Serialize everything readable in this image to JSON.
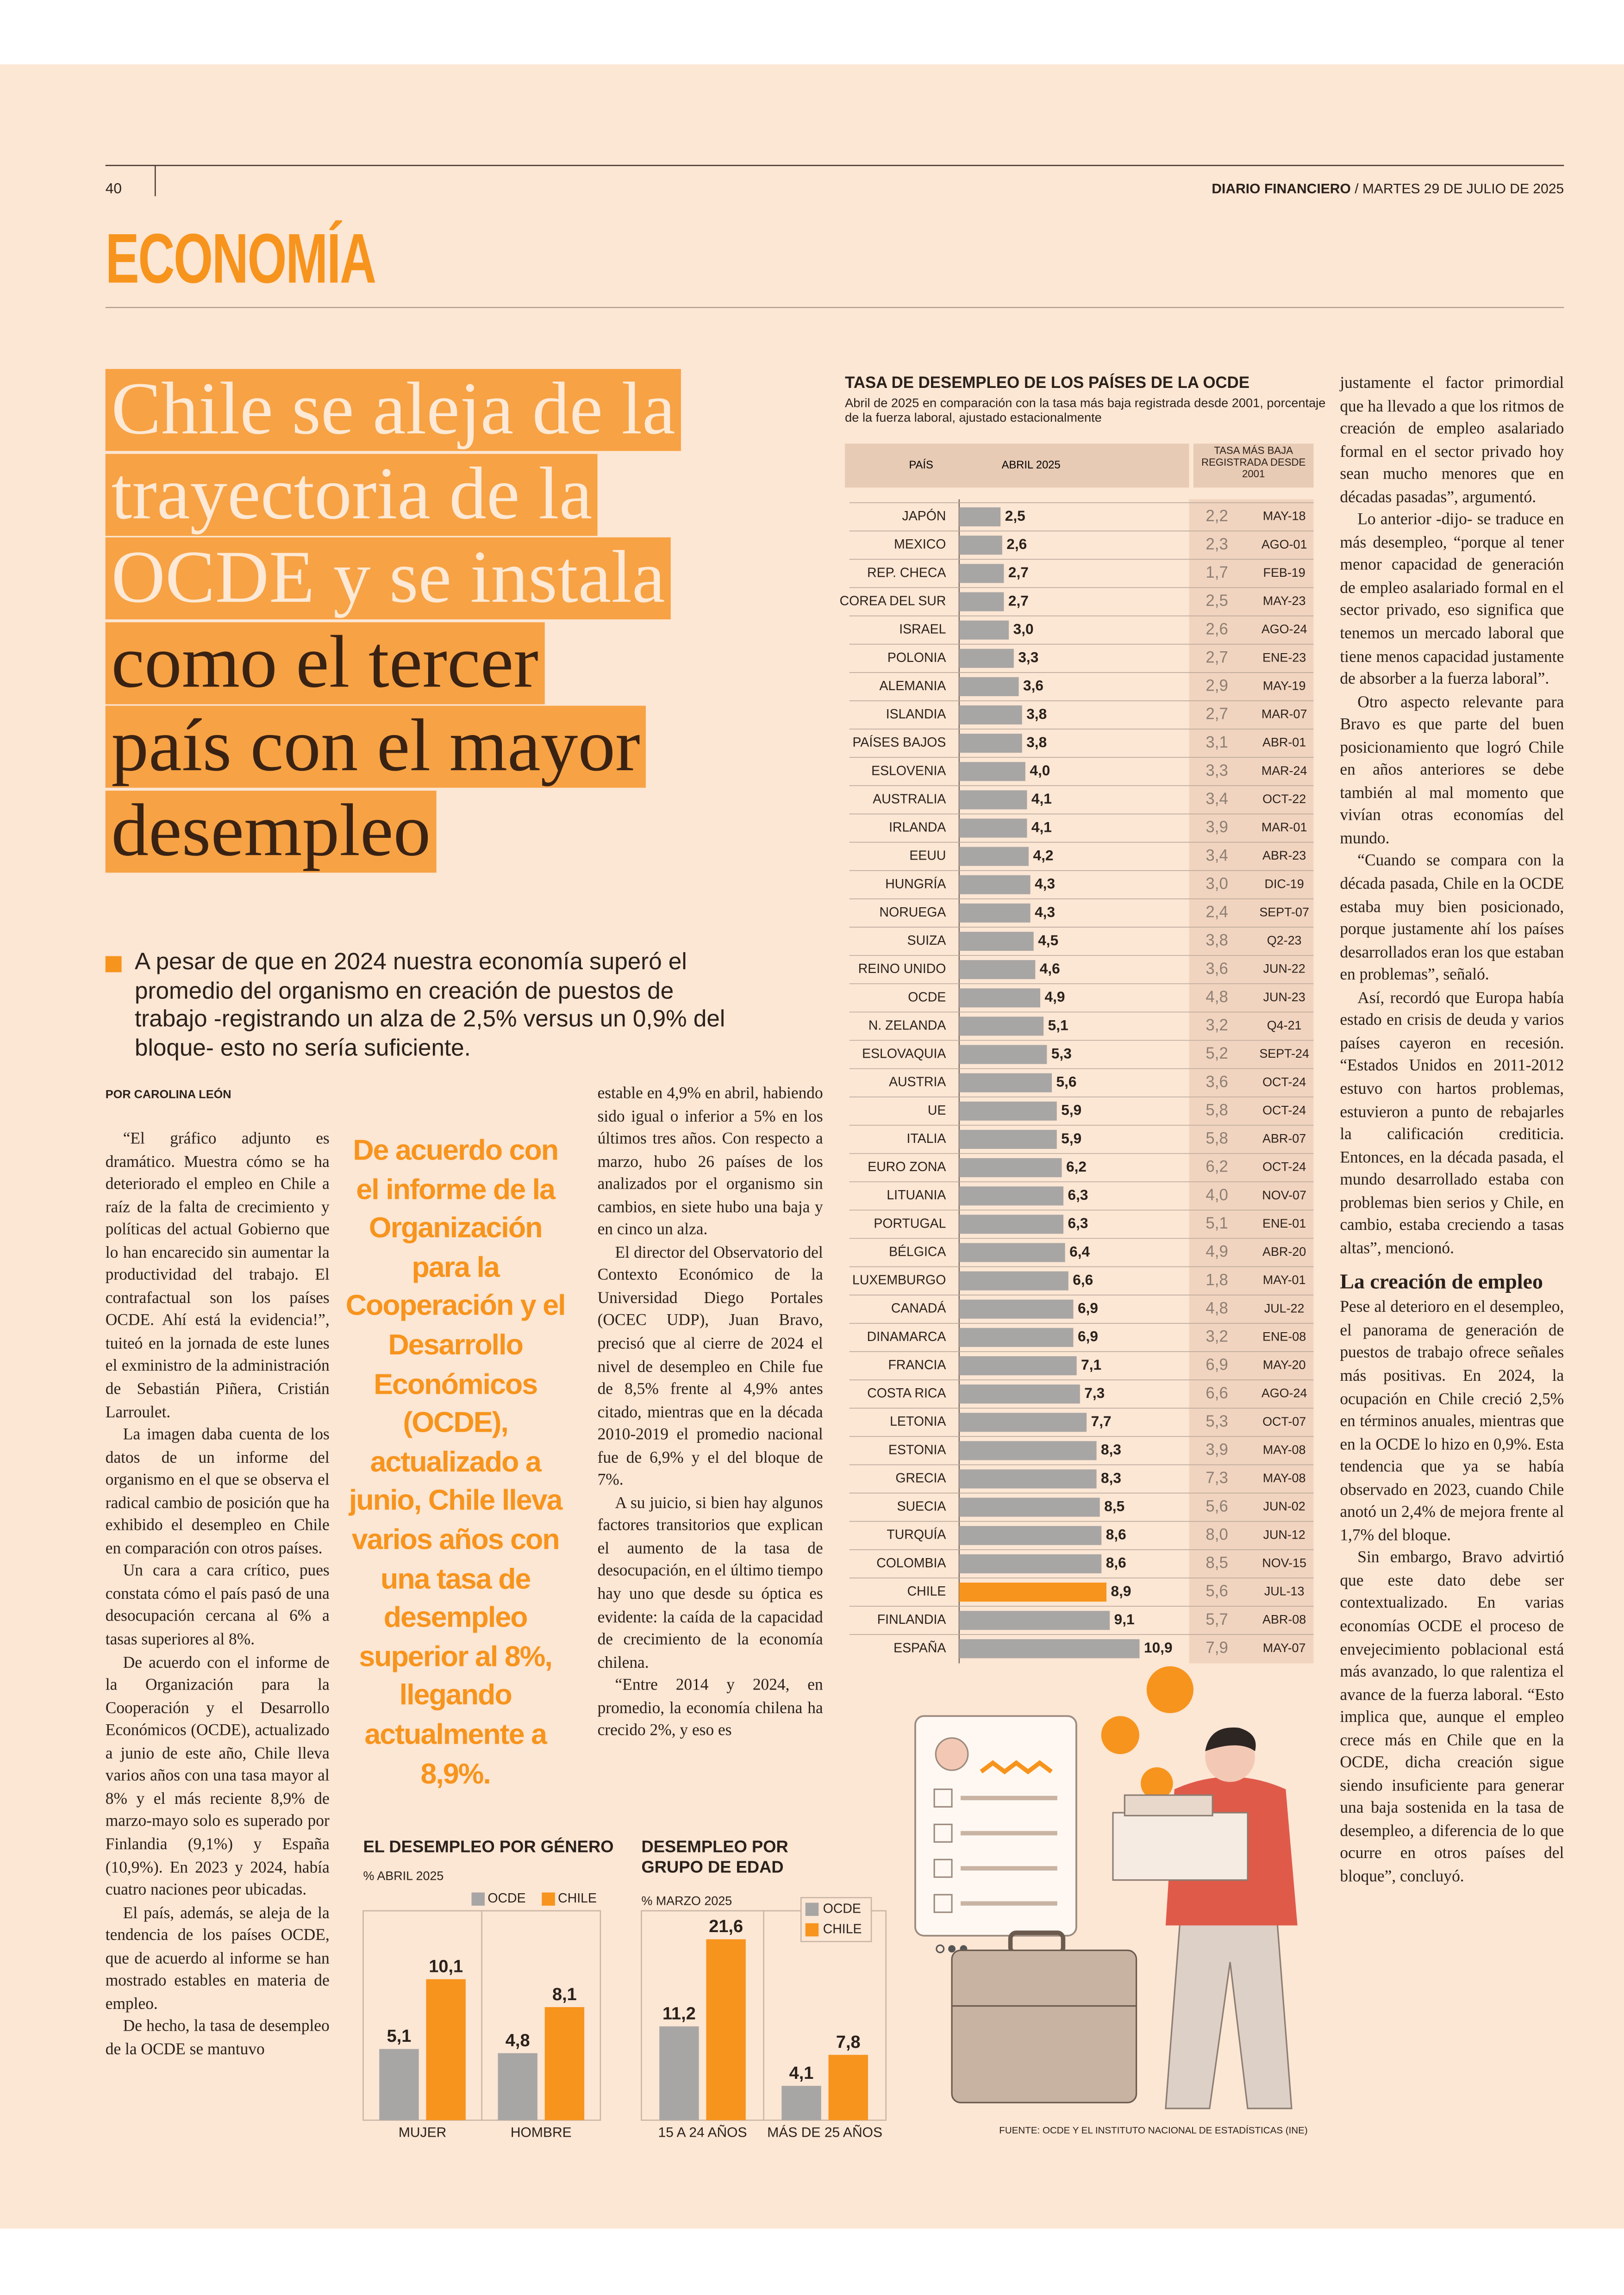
{
  "header": {
    "page_number": "40",
    "publication": "DIARIO FINANCIERO",
    "date": "/ MARTES 29 DE JULIO DE 2025",
    "section": "ECONOMÍA"
  },
  "headline": {
    "light": [
      "Chile se aleja de la",
      "trayectoria de la",
      "OCDE y se instala"
    ],
    "dark": [
      "como el tercer",
      "país con el mayor",
      "desempleo"
    ]
  },
  "lead": "A pesar de que en 2024 nuestra economía superó el promedio del organismo en creación de puestos de trabajo -registrando un alza de 2,5% versus un 0,9% del bloque- esto no sería suficiente.",
  "byline": "POR CAROLINA LEÓN",
  "pull_quote": "De acuerdo con el informe de la Organización para la Cooperación y el Desarrollo Económicos (OCDE), actualizado a junio, Chile lleva varios años con una tasa de desempleo superior al 8%, llegando actualmente a 8,9%.",
  "body": {
    "column1": [
      "“El gráfico adjunto es dramático. Muestra cómo se ha deteriorado el empleo en Chile a raíz de la falta de crecimiento y políticas del actual Gobierno que lo han encarecido sin aumentar la productividad del trabajo. El contrafactual son los países OCDE. Ahí está la evidencia!”, tuiteó en la jornada de este lunes el exministro de la administración de Sebastián Piñera, Cristián Larroulet.",
      "La imagen daba cuenta de los datos de un informe del organismo en el que se observa el radical cambio de posición que ha exhibido el desempleo en Chile en comparación con otros países.",
      "Un cara a cara crítico, pues constata cómo el país pasó de una desocupación cercana al 6% a tasas superiores al 8%.",
      "De acuerdo con el informe de la Organización para la Cooperación y el Desarrollo Económicos (OCDE), actualizado a junio de este año, Chile lleva varios años con una tasa mayor al 8% y el más reciente 8,9% de marzo-mayo solo es superado por Finlandia (9,1%) y España (10,9%). En 2023 y 2024, había cuatro naciones peor ubicadas.",
      "El país, además, se aleja de la tendencia de los países OCDE, que de acuerdo al informe se han mostrado estables en materia de empleo.",
      "De hecho, la tasa de desempleo de la OCDE se mantuvo"
    ],
    "column2": [
      "estable en 4,9% en abril, habiendo sido igual o inferior a 5% en los últimos tres años. Con respecto a marzo, hubo 26 países de los analizados por el organismo sin cambios, en siete hubo una baja y en cinco un alza.",
      "El director del Observatorio del Contexto Económico de la Universidad Diego Portales (OCEC UDP), Juan Bravo, precisó que al cierre de 2024 el nivel de desempleo en Chile fue de 8,5% frente al 4,9% antes citado, mientras que en la década 2010-2019 el promedio nacional fue de 6,9% y el del bloque de 7%.",
      "A su juicio, si bien hay algunos factores transitorios que explican el aumento de la tasa de desocupación, en el último tiempo hay uno que desde su óptica es evidente: la caída de la capacidad de crecimiento de la economía chilena.",
      "“Entre 2014 y 2024, en promedio, la economía chilena ha crecido 2%, y eso es"
    ],
    "column3_top": [
      "justamente el factor primordial que ha llevado a que los ritmos de creación de empleo asalariado formal en el sector privado hoy sean mucho menores que en décadas pasadas”, argumentó.",
      "Lo anterior -dijo- se traduce en más desempleo, “porque al tener menor capacidad de generación de empleo asalariado formal en el sector privado, eso significa que tenemos un mercado laboral que tiene menos capacidad justamente de absorber a la fuerza laboral”.",
      "Otro aspecto relevante para Bravo es que parte del buen posicionamiento que logró Chile en años anteriores se debe también al mal momento que vivían otras economías del mundo.",
      "“Cuando se compara con la década pasada, Chile en la OCDE estaba muy bien posicionado, porque justamente ahí los países desarrollados eran los que estaban en problemas”, señaló.",
      "Así, recordó que Europa había estado en crisis de deuda y varios países cayeron en recesión. “Estados Unidos en 2011-2012 estuvo con hartos problemas, estuvieron a punto de rebajarles la calificación crediticia. Entonces, en la década pasada, el mundo desarrollado estaba con problemas bien serios y Chile, en cambio, estaba creciendo a tasas altas”, mencionó."
    ],
    "subhead": "La creación de empleo",
    "column3_bottom": [
      "Pese al deterioro en el desempleo, el panorama de generación de puestos de trabajo ofrece señales más positivas. En 2024, la ocupación en Chile creció 2,5% en términos anuales, mientras que en la OCDE lo hizo en 0,9%. Esta tendencia que ya se había observado en 2023, cuando Chile anotó un 2,4% de mejora frente al 1,7% del bloque.",
      "Sin embargo, Bravo advirtió que este dato debe ser contextualizado. En varias economías OCDE el proceso de envejecimiento poblacional está más avanzado, lo que ralentiza el avance de la fuerza laboral. “Esto implica que, aunque el empleo crece más en Chile que en la OCDE, dicha creación sigue siendo insuficiente para generar una baja sostenida en la tasa de desempleo, a diferencia de lo que ocurre en otros países del bloque”, concluyó."
    ]
  },
  "chart_data": [
    {
      "type": "bar",
      "horizontal": true,
      "title": "TASA DE DESEMPLEO DE LOS PAÍSES DE LA OCDE",
      "subtitle": "Abril de 2025 en comparación con la tasa más baja registrada desde 2001, porcentaje de la fuerza laboral, ajustado estacionalmente",
      "category_header": "PAÍS",
      "categories": [
        "JAPÓN",
        "MEXICO",
        "REP. CHECA",
        "COREA DEL SUR",
        "ISRAEL",
        "POLONIA",
        "ALEMANIA",
        "ISLANDIA",
        "PAÍSES BAJOS",
        "ESLOVENIA",
        "AUSTRALIA",
        "IRLANDA",
        "EEUU",
        "HUNGRÍA",
        "NORUEGA",
        "SUIZA",
        "REINO UNIDO",
        "OCDE",
        "N. ZELANDA",
        "ESLOVAQUIA",
        "AUSTRIA",
        "UE",
        "ITALIA",
        "EURO ZONA",
        "LITUANIA",
        "PORTUGAL",
        "BÉLGICA",
        "LUXEMBURGO",
        "CANADÁ",
        "DINAMARCA",
        "FRANCIA",
        "COSTA RICA",
        "LETONIA",
        "ESTONIA",
        "GRECIA",
        "SUECIA",
        "TURQUÍA",
        "COLOMBIA",
        "CHILE",
        "FINLANDIA",
        "ESPAÑA"
      ],
      "series": [
        {
          "name": "ABRIL 2025",
          "color": "#a8a6a4",
          "values": [
            2.5,
            2.6,
            2.7,
            2.7,
            3.0,
            3.3,
            3.6,
            3.8,
            3.8,
            4.0,
            4.1,
            4.1,
            4.2,
            4.3,
            4.3,
            4.5,
            4.6,
            4.9,
            5.1,
            5.3,
            5.6,
            5.9,
            5.9,
            6.2,
            6.3,
            6.3,
            6.4,
            6.6,
            6.9,
            6.9,
            7.1,
            7.3,
            7.7,
            8.3,
            8.3,
            8.5,
            8.6,
            8.6,
            8.9,
            9.1,
            10.9
          ],
          "value_labels": [
            "2,5",
            "2,6",
            "2,7",
            "2,7",
            "3,0",
            "3,3",
            "3,6",
            "3,8",
            "3,8",
            "4,0",
            "4,1",
            "4,1",
            "4,2",
            "4,3",
            "4,3",
            "4,5",
            "4,6",
            "4,9",
            "5,1",
            "5,3",
            "5,6",
            "5,9",
            "5,9",
            "6,2",
            "6,3",
            "6,3",
            "6,4",
            "6,6",
            "6,9",
            "6,9",
            "7,1",
            "7,3",
            "7,7",
            "8,3",
            "8,3",
            "8,5",
            "8,6",
            "8,6",
            "8,9",
            "9,1",
            "10,9"
          ]
        },
        {
          "name": "TASA MÁS BAJA REGISTRADA DESDE 2001",
          "style": "table",
          "values": [
            2.2,
            2.3,
            1.7,
            2.5,
            2.6,
            2.7,
            2.9,
            2.7,
            3.1,
            3.3,
            3.4,
            3.9,
            3.4,
            3.0,
            2.4,
            3.8,
            3.6,
            4.8,
            3.2,
            5.2,
            3.6,
            5.8,
            5.8,
            6.2,
            4.0,
            5.1,
            4.9,
            1.8,
            4.8,
            3.2,
            6.9,
            6.6,
            5.3,
            3.9,
            7.3,
            5.6,
            8.0,
            8.5,
            5.6,
            5.7,
            7.9
          ],
          "value_labels": [
            "2,2",
            "2,3",
            "1,7",
            "2,5",
            "2,6",
            "2,7",
            "2,9",
            "2,7",
            "3,1",
            "3,3",
            "3,4",
            "3,9",
            "3,4",
            "3,0",
            "2,4",
            "3,8",
            "3,6",
            "4,8",
            "3,2",
            "5,2",
            "3,6",
            "5,8",
            "5,8",
            "6,2",
            "4,0",
            "5,1",
            "4,9",
            "1,8",
            "4,8",
            "3,2",
            "6,9",
            "6,6",
            "5,3",
            "3,9",
            "7,3",
            "5,6",
            "8,0",
            "8,5",
            "5,6",
            "5,7",
            "7,9"
          ],
          "dates": [
            "MAY-18",
            "AGO-01",
            "FEB-19",
            "MAY-23",
            "AGO-24",
            "ENE-23",
            "MAY-19",
            "MAR-07",
            "ABR-01",
            "MAR-24",
            "OCT-22",
            "MAR-01",
            "ABR-23",
            "DIC-19",
            "SEPT-07",
            "Q2-23",
            "JUN-22",
            "JUN-23",
            "Q4-21",
            "SEPT-24",
            "OCT-24",
            "OCT-24",
            "ABR-07",
            "OCT-24",
            "NOV-07",
            "ENE-01",
            "ABR-20",
            "MAY-01",
            "JUL-22",
            "ENE-08",
            "MAY-20",
            "AGO-24",
            "OCT-07",
            "MAY-08",
            "MAY-08",
            "JUN-02",
            "JUN-12",
            "NOV-15",
            "JUL-13",
            "ABR-08",
            "MAY-07"
          ]
        }
      ],
      "highlight": {
        "index": 38,
        "color": "#f7941d"
      },
      "xlim": [
        0,
        11
      ]
    },
    {
      "type": "bar",
      "title": "EL DESEMPLEO POR GÉNERO",
      "subtitle": "% ABRIL 2025",
      "categories": [
        "MUJER",
        "HOMBRE"
      ],
      "series": [
        {
          "name": "OCDE",
          "color": "#a8a6a4",
          "values": [
            5.1,
            4.8
          ],
          "value_labels": [
            "5,1",
            "4,8"
          ]
        },
        {
          "name": "CHILE",
          "color": "#f7941d",
          "values": [
            10.1,
            8.1
          ],
          "value_labels": [
            "10,1",
            "8,1"
          ]
        }
      ],
      "ylim": [
        0,
        15
      ],
      "legend": "top"
    },
    {
      "type": "bar",
      "title": "DESEMPLEO POR GRUPO DE EDAD",
      "subtitle": "% MARZO 2025",
      "categories": [
        "15 A 24 AÑOS",
        "MÁS DE 25 AÑOS"
      ],
      "series": [
        {
          "name": "OCDE",
          "color": "#a8a6a4",
          "values": [
            11.2,
            4.1
          ],
          "value_labels": [
            "11,2",
            "4,1"
          ]
        },
        {
          "name": "CHILE",
          "color": "#f7941d",
          "values": [
            21.6,
            7.8
          ],
          "value_labels": [
            "21,6",
            "7,8"
          ]
        }
      ],
      "ylim": [
        0,
        25
      ],
      "legend": "top-right"
    }
  ],
  "source": "FUENTE: OCDE Y EL INSTITUTO NACIONAL DE ESTADÍSTICAS (INE)"
}
